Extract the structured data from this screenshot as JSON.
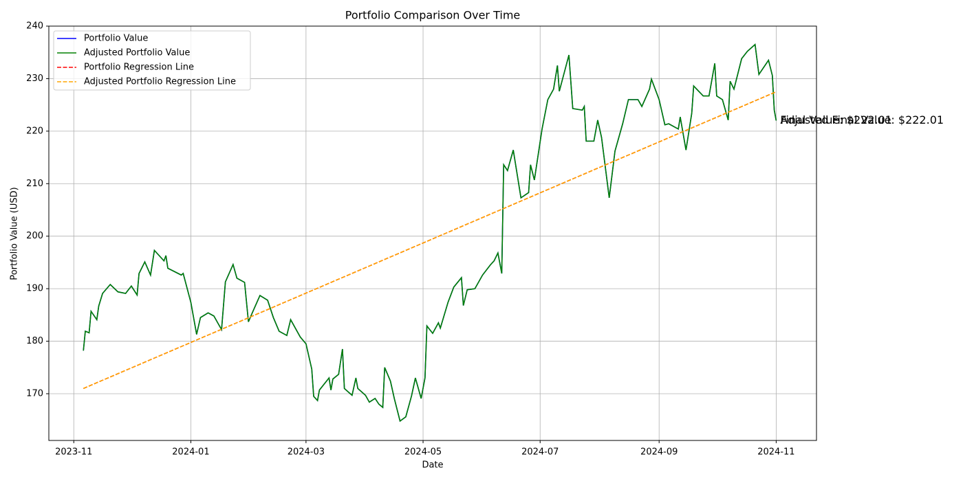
{
  "chart_data": {
    "type": "line",
    "title": "Portfolio Comparison Over Time",
    "xlabel": "Date",
    "ylabel": "Portfolio Value (USD)",
    "x": [
      "2023-11-06",
      "2023-11-07",
      "2023-11-09",
      "2023-11-10",
      "2023-11-13",
      "2023-11-14",
      "2023-11-16",
      "2023-11-20",
      "2023-11-24",
      "2023-11-28",
      "2023-12-01",
      "2023-12-04",
      "2023-12-05",
      "2023-12-08",
      "2023-12-11",
      "2023-12-13",
      "2023-12-18",
      "2023-12-19",
      "2023-12-20",
      "2023-12-27",
      "2023-12-28",
      "2024-01-01",
      "2024-01-04",
      "2024-01-06",
      "2024-01-10",
      "2024-01-13",
      "2024-01-17",
      "2024-01-19",
      "2024-01-23",
      "2024-01-25",
      "2024-01-29",
      "2024-01-31",
      "2024-02-02",
      "2024-02-06",
      "2024-02-10",
      "2024-02-13",
      "2024-02-16",
      "2024-02-20",
      "2024-02-22",
      "2024-02-27",
      "2024-03-01",
      "2024-03-04",
      "2024-03-05",
      "2024-03-07",
      "2024-03-08",
      "2024-03-13",
      "2024-03-14",
      "2024-03-15",
      "2024-03-18",
      "2024-03-20",
      "2024-03-21",
      "2024-03-25",
      "2024-03-27",
      "2024-03-28",
      "2024-04-01",
      "2024-04-03",
      "2024-04-06",
      "2024-04-08",
      "2024-04-10",
      "2024-04-11",
      "2024-04-14",
      "2024-04-16",
      "2024-04-19",
      "2024-04-22",
      "2024-04-25",
      "2024-04-27",
      "2024-04-30",
      "2024-05-02",
      "2024-05-03",
      "2024-05-06",
      "2024-05-09",
      "2024-05-10",
      "2024-05-14",
      "2024-05-17",
      "2024-05-21",
      "2024-05-22",
      "2024-05-24",
      "2024-05-28",
      "2024-06-01",
      "2024-06-05",
      "2024-06-07",
      "2024-06-09",
      "2024-06-11",
      "2024-06-12",
      "2024-06-14",
      "2024-06-17",
      "2024-06-21",
      "2024-06-25",
      "2024-06-26",
      "2024-06-28",
      "2024-07-02",
      "2024-07-05",
      "2024-07-08",
      "2024-07-10",
      "2024-07-11",
      "2024-07-16",
      "2024-07-18",
      "2024-07-23",
      "2024-07-24",
      "2024-07-25",
      "2024-07-29",
      "2024-07-31",
      "2024-08-02",
      "2024-08-06",
      "2024-08-09",
      "2024-08-13",
      "2024-08-16",
      "2024-08-21",
      "2024-08-23",
      "2024-08-27",
      "2024-08-28",
      "2024-09-01",
      "2024-09-04",
      "2024-09-06",
      "2024-09-11",
      "2024-09-12",
      "2024-09-15",
      "2024-09-18",
      "2024-09-19",
      "2024-09-24",
      "2024-09-27",
      "2024-09-30",
      "2024-10-01",
      "2024-10-04",
      "2024-10-07",
      "2024-10-08",
      "2024-10-10",
      "2024-10-14",
      "2024-10-17",
      "2024-10-21",
      "2024-10-23",
      "2024-10-28",
      "2024-10-30",
      "2024-10-31",
      "2024-11-01"
    ],
    "series": [
      {
        "name": "Portfolio Value",
        "color": "#0000ff",
        "linestyle": "solid",
        "values": [
          178.2,
          181.9,
          181.6,
          185.7,
          184.1,
          186.7,
          189.1,
          190.8,
          189.4,
          189.1,
          190.5,
          188.8,
          192.9,
          195.1,
          192.6,
          197.3,
          195.3,
          196.3,
          193.9,
          192.6,
          192.9,
          187.4,
          181.3,
          184.5,
          185.4,
          184.8,
          182.2,
          191.3,
          194.6,
          192.0,
          191.2,
          183.7,
          185.4,
          188.7,
          187.8,
          184.5,
          181.9,
          181.1,
          184.1,
          180.8,
          179.5,
          174.7,
          169.5,
          168.7,
          170.7,
          173.0,
          170.7,
          172.8,
          173.7,
          178.5,
          171.0,
          169.7,
          173.0,
          171.0,
          169.7,
          168.4,
          169.1,
          168.0,
          167.4,
          175.0,
          172.4,
          169.1,
          164.8,
          165.6,
          169.6,
          173.0,
          169.1,
          173.0,
          182.9,
          181.5,
          183.5,
          182.5,
          187.4,
          190.3,
          192.1,
          186.8,
          189.8,
          190.0,
          192.6,
          194.5,
          195.3,
          196.8,
          192.9,
          213.6,
          212.5,
          216.4,
          207.3,
          208.3,
          213.6,
          210.7,
          220.4,
          226.0,
          228.0,
          232.5,
          227.6,
          234.5,
          224.3,
          224.0,
          224.7,
          218.1,
          218.1,
          222.1,
          218.8,
          207.3,
          216.2,
          221.4,
          226.0,
          226.0,
          224.7,
          228.0,
          229.9,
          226.0,
          221.2,
          221.4,
          220.4,
          222.7,
          216.4,
          223.4,
          228.6,
          226.7,
          226.7,
          232.9,
          226.7,
          226.0,
          222.1,
          229.5,
          228.0,
          233.8,
          235.2,
          236.5,
          230.8,
          233.5,
          230.6,
          224.0,
          222.01
        ]
      },
      {
        "name": "Adjusted Portfolio Value",
        "color": "#008000",
        "linestyle": "solid",
        "values": [
          178.2,
          181.9,
          181.6,
          185.7,
          184.1,
          186.7,
          189.1,
          190.8,
          189.4,
          189.1,
          190.5,
          188.8,
          192.9,
          195.1,
          192.6,
          197.3,
          195.3,
          196.3,
          193.9,
          192.6,
          192.9,
          187.4,
          181.3,
          184.5,
          185.4,
          184.8,
          182.2,
          191.3,
          194.6,
          192.0,
          191.2,
          183.7,
          185.4,
          188.7,
          187.8,
          184.5,
          181.9,
          181.1,
          184.1,
          180.8,
          179.5,
          174.7,
          169.5,
          168.7,
          170.7,
          173.0,
          170.7,
          172.8,
          173.7,
          178.5,
          171.0,
          169.7,
          173.0,
          171.0,
          169.7,
          168.4,
          169.1,
          168.0,
          167.4,
          175.0,
          172.4,
          169.1,
          164.8,
          165.6,
          169.6,
          173.0,
          169.1,
          173.0,
          182.9,
          181.5,
          183.5,
          182.5,
          187.4,
          190.3,
          192.1,
          186.8,
          189.8,
          190.0,
          192.6,
          194.5,
          195.3,
          196.8,
          192.9,
          213.6,
          212.5,
          216.4,
          207.3,
          208.3,
          213.6,
          210.7,
          220.4,
          226.0,
          228.0,
          232.5,
          227.6,
          234.5,
          224.3,
          224.0,
          224.7,
          218.1,
          218.1,
          222.1,
          218.8,
          207.3,
          216.2,
          221.4,
          226.0,
          226.0,
          224.7,
          228.0,
          229.9,
          226.0,
          221.2,
          221.4,
          220.4,
          222.7,
          216.4,
          223.4,
          228.6,
          226.7,
          226.7,
          232.9,
          226.7,
          226.0,
          222.1,
          229.5,
          228.0,
          233.8,
          235.2,
          236.5,
          230.8,
          233.5,
          230.6,
          224.0,
          222.01
        ]
      },
      {
        "name": "Portfolio Regression Line",
        "color": "#ff0000",
        "linestyle": "dashed",
        "x": [
          "2023-11-06",
          "2024-11-01"
        ],
        "values": [
          171.0,
          227.5
        ]
      },
      {
        "name": "Adjusted Portfolio Regression Line",
        "color": "#ffa500",
        "linestyle": "dashed",
        "x": [
          "2023-11-06",
          "2024-11-01"
        ],
        "values": [
          171.0,
          227.5
        ]
      }
    ],
    "annotations": [
      {
        "text": "Final Value: $222.01",
        "color": "#0000ff"
      },
      {
        "text": "Adjusted Final Value: $222.01",
        "color": "#008000"
      }
    ],
    "xlim": [
      "2023-10-19",
      "2024-11-22"
    ],
    "xticks": [
      {
        "value": "2023-11-01",
        "label": "2023-11"
      },
      {
        "value": "2024-01-01",
        "label": "2024-01"
      },
      {
        "value": "2024-03-01",
        "label": "2024-03"
      },
      {
        "value": "2024-05-01",
        "label": "2024-05"
      },
      {
        "value": "2024-07-01",
        "label": "2024-07"
      },
      {
        "value": "2024-09-01",
        "label": "2024-09"
      },
      {
        "value": "2024-11-01",
        "label": "2024-11"
      }
    ],
    "ylim": [
      161.1,
      240
    ],
    "yticks": [
      170,
      180,
      190,
      200,
      210,
      220,
      230,
      240
    ],
    "grid": true,
    "legend": "upper left"
  }
}
